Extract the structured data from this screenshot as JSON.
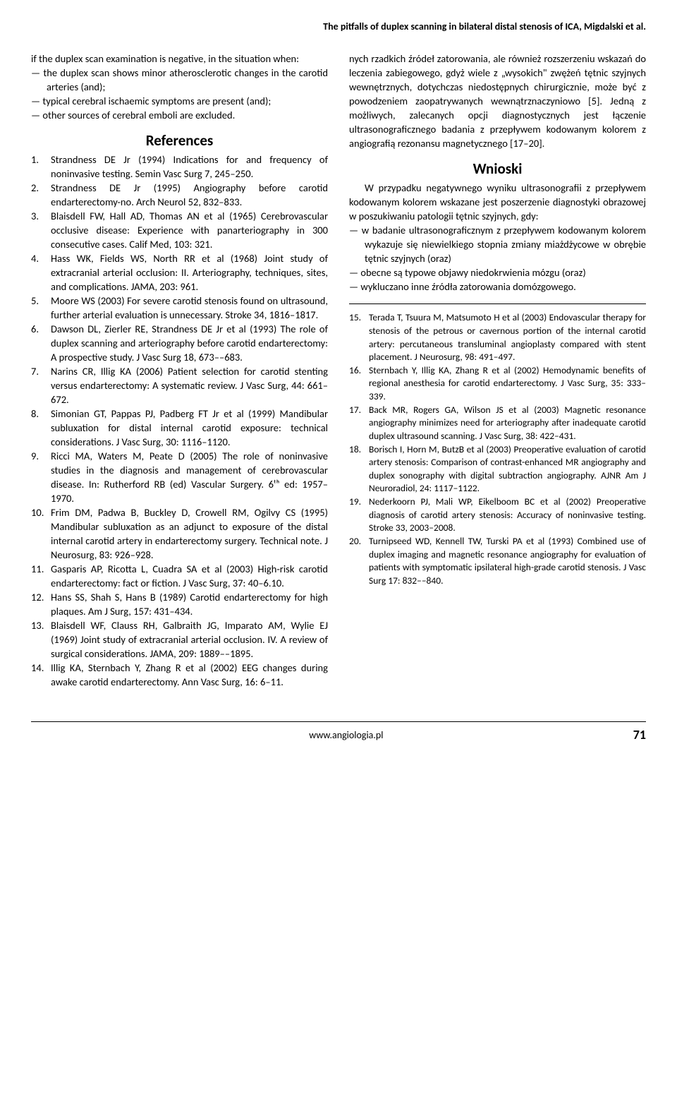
{
  "running_head": "The pitfalls of duplex scanning in bilateral distal stenosis of ICA, Migdalski et al.",
  "left": {
    "intro": "if the duplex scan examination is negative, in the situation when:",
    "bullets": [
      "the duplex scan shows minor atherosclerotic changes in the carotid arteries (and);",
      "typical cerebral ischaemic symptoms are present (and);",
      "other sources of cerebral emboli are excluded."
    ],
    "refs_heading": "References",
    "refs": [
      {
        "n": "1.",
        "t": "Strandness DE Jr (1994) Indications for and frequency of noninvasive testing. Semin Vasc Surg 7, 245–250."
      },
      {
        "n": "2.",
        "t": "Strandness DE Jr (1995) Angiography before carotid endarterectomy-no. Arch Neurol 52, 832–833."
      },
      {
        "n": "3.",
        "t": "Blaisdell FW, Hall AD, Thomas AN et al (1965) Cerebrovascular occlusive disease: Experience with panarteriography in 300 consecutive cases. Calif Med, 103: 321."
      },
      {
        "n": "4.",
        "t": "Hass WK, Fields WS, North RR et al (1968) Joint study of extracranial arterial occlusion: II. Arteriography, techniques, sites, and complications. JAMA, 203: 961."
      },
      {
        "n": "5.",
        "t": "Moore WS (2003) For severe carotid stenosis found on ultrasound, further arterial evaluation is unnecessary. Stroke 34, 1816–1817."
      },
      {
        "n": "6.",
        "t": "Dawson DL, Zierler RE, Strandness DE Jr et al (1993) The role of duplex scanning and arteriography before carotid endarterectomy: A prospective study. J Vasc Surg 18, 673––683."
      },
      {
        "n": "7.",
        "t": "Narins CR, Illig KA (2006) Patient selection for carotid stenting versus endarterectomy: A systematic review. J Vasc Surg, 44: 661–672."
      },
      {
        "n": "8.",
        "t": "Simonian GT, Pappas PJ, Padberg FT Jr et al (1999) Mandibular subluxation for distal internal carotid exposure: technical considerations. J Vasc Surg, 30: 1116–1120."
      },
      {
        "n": "9.",
        "t": "Ricci MA, Waters M, Peate D (2005) The role of noninvasive studies in the diagnosis and management of cerebrovascular disease. In: Rutherford RB (ed) Vascular Surgery. 6ᵗʰ ed: 1957–1970."
      },
      {
        "n": "10.",
        "t": "Frim DM, Padwa B, Buckley D, Crowell RM, Ogilvy CS (1995) Mandibular subluxation as an adjunct to exposure of the distal internal carotid artery in endarterectomy surgery. Technical note. J Neurosurg, 83: 926–928."
      },
      {
        "n": "11.",
        "t": "Gasparis AP, Ricotta L, Cuadra SA et al (2003) High-risk carotid endarterectomy: fact or fiction. J Vasc Surg, 37: 40–6.10."
      },
      {
        "n": "12.",
        "t": "Hans SS, Shah S, Hans B (1989) Carotid endarterectomy for high plaques. Am J Surg, 157: 431–434."
      },
      {
        "n": "13.",
        "t": "Blaisdell WF, Clauss RH, Galbraith JG, Imparato AM, Wylie EJ (1969) Joint study of extracranial arterial occlusion. IV. A review of surgical considerations. JAMA, 209: 1889––1895."
      },
      {
        "n": "14.",
        "t": "Illig KA, Sternbach Y, Zhang R et al (2002) EEG changes during awake carotid endarterectomy. Ann Vasc Surg, 16: 6–11."
      }
    ]
  },
  "right": {
    "para1": "nych rzadkich źródeł zatorowania, ale również rozszerzeniu wskazań do leczenia zabiegowego, gdyż wiele z „wysokich\" zwężeń tętnic szyjnych wewnętrznych, dotychczas niedostępnych chirurgicznie, może być z powodzeniem zaopatrywanych wewnątrznaczyniowo [5]. Jedną z możliwych, zalecanych opcji diagnostycznych jest łączenie ultrasonograficznego badania z przepływem kodowanym kolorem z angiografią rezonansu magnetycznego [17–20].",
    "wnioski_heading": "Wnioski",
    "para2": "W przypadku negatywnego wyniku ultrasonografii z przepływem kodowanym kolorem wskazane jest poszerzenie diagnostyki obrazowej w poszukiwaniu patologii tętnic szyjnych, gdy:",
    "bullets": [
      "w badanie ultrasonograficznym z przepływem kodowanym kolorem wykazuje się niewielkiego stopnia zmiany miażdżycowe w obrębie tętnic szyjnych (oraz)",
      "obecne są typowe objawy niedokrwienia mózgu (oraz)",
      "wykluczano inne źródła zatorowania domózgowego."
    ],
    "refs": [
      {
        "n": "15.",
        "t": "Terada T, Tsuura M, Matsumoto H et al (2003) Endovascular therapy for stenosis of the petrous or cavernous portion of the internal carotid artery: percutaneous transluminal angioplasty compared with stent placement. J Neurosurg, 98: 491–497."
      },
      {
        "n": "16.",
        "t": "Sternbach Y, Illig KA, Zhang R et al (2002) Hemodynamic benefits of regional anesthesia for carotid endarterectomy. J Vasc Surg, 35: 333–339."
      },
      {
        "n": "17.",
        "t": "Back MR, Rogers GA, Wilson JS et al (2003) Magnetic resonance angiography minimizes need for arteriography after inadequate carotid duplex ultrasound scanning. J Vasc Surg, 38: 422–431."
      },
      {
        "n": "18.",
        "t": "Borisch I, Horn M, ButzB et al (2003) Preoperative evaluation of carotid artery stenosis: Comparison of contrast-enhanced MR angiography and duplex sonography with digital subtraction angiography. AJNR Am J Neuroradiol, 24: 1117–1122."
      },
      {
        "n": "19.",
        "t": "Nederkoorn PJ, Mali WP, Eikelboom BC et al (2002) Preoperative diagnosis of carotid artery stenosis: Accuracy of noninvasive testing. Stroke 33, 2003–2008."
      },
      {
        "n": "20.",
        "t": "Turnipseed WD, Kennell TW, Turski PA et al (1993) Combined use of duplex imaging and magnetic resonance angiography for evaluation of patients with symptomatic ipsilateral high-grade carotid stenosis. J Vasc Surg 17: 832––840."
      }
    ]
  },
  "footer": {
    "site": "www.angiologia.pl",
    "page": "71"
  }
}
